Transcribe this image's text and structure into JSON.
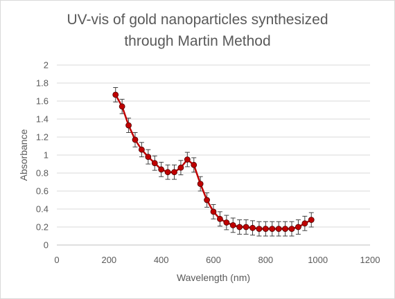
{
  "chart_data": {
    "type": "scatter",
    "title_lines": [
      "UV-vis of gold nanoparticles synthesized",
      "through Martin Method"
    ],
    "xlabel": "Wavelength (nm)",
    "ylabel": "Absorbance",
    "xlim": [
      0,
      1200
    ],
    "ylim": [
      0,
      2
    ],
    "x_ticks": [
      0,
      200,
      400,
      600,
      800,
      1000,
      1200
    ],
    "y_ticks": [
      0,
      0.2,
      0.4,
      0.6,
      0.8,
      1,
      1.2,
      1.4,
      1.6,
      1.8,
      2
    ],
    "y_tick_labels": [
      "0",
      "0.2",
      "0.4",
      "0.6",
      "0.8",
      "1",
      "1.2",
      "1.4",
      "1.6",
      "1.8",
      "2"
    ],
    "grid": "horizontal",
    "legend": "none",
    "series": [
      {
        "marker_color": "#c00000",
        "line_color": "#c00000",
        "error_bar": 0.08,
        "x": [
          225,
          250,
          275,
          300,
          325,
          350,
          375,
          400,
          425,
          450,
          475,
          500,
          525,
          550,
          575,
          600,
          625,
          650,
          675,
          700,
          725,
          750,
          775,
          800,
          825,
          850,
          875,
          900,
          925,
          950,
          975
        ],
        "y": [
          1.67,
          1.54,
          1.33,
          1.17,
          1.06,
          0.98,
          0.91,
          0.84,
          0.81,
          0.81,
          0.86,
          0.95,
          0.89,
          0.68,
          0.5,
          0.37,
          0.29,
          0.25,
          0.22,
          0.2,
          0.2,
          0.19,
          0.18,
          0.18,
          0.18,
          0.18,
          0.18,
          0.18,
          0.2,
          0.24,
          0.28
        ]
      }
    ]
  }
}
